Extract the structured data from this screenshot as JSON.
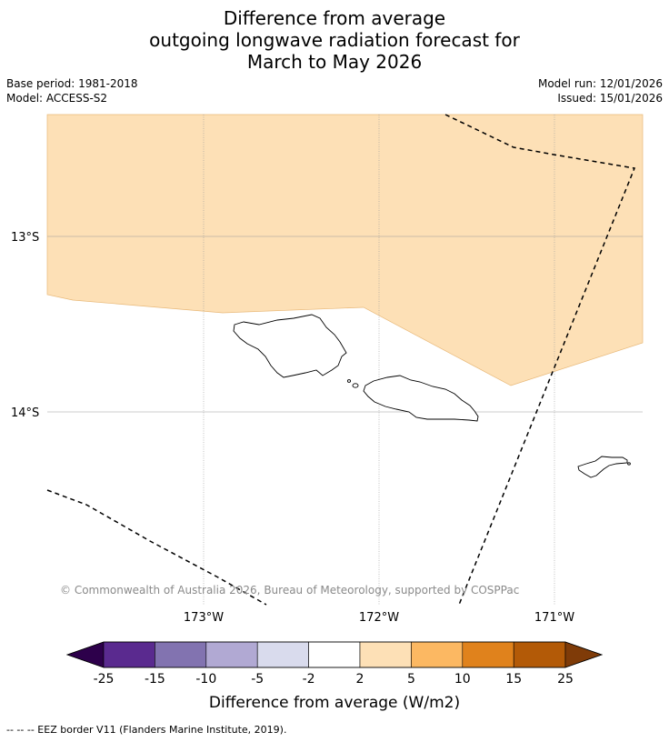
{
  "title": {
    "line1": "Difference from average",
    "line2": "outgoing longwave radiation forecast for",
    "line3": "March to May 2026"
  },
  "meta": {
    "base_period": "Base period: 1981-2018",
    "model": "Model: ACCESS-S2",
    "model_run": "Model run: 12/01/2026",
    "issued": "Issued: 15/01/2026"
  },
  "map": {
    "lat_labels": [
      "13°S",
      "14°S"
    ],
    "lon_labels": [
      "173°W",
      "172°W",
      "171°W"
    ],
    "copyright": "© Commonwealth of Australia 2026, Bureau of Meteorology, supported by COSPPac",
    "anomaly_region_color": "#fde0b6",
    "land_outline_color": "#000000"
  },
  "colorbar": {
    "ticks": [
      "-25",
      "-15",
      "-10",
      "-5",
      "-2",
      "2",
      "5",
      "10",
      "15",
      "25"
    ],
    "colors": [
      "#2d004b",
      "#5a2a8f",
      "#8273b0",
      "#b1a9d3",
      "#d9dbed",
      "#ffffff",
      "#fde0b6",
      "#fcb862",
      "#e0821c",
      "#b35a07",
      "#7f3b08"
    ],
    "label": "Difference from average (W/m2)"
  },
  "footnote": "--  --  -- EEZ border V11 (Flanders Marine Institute, 2019)."
}
